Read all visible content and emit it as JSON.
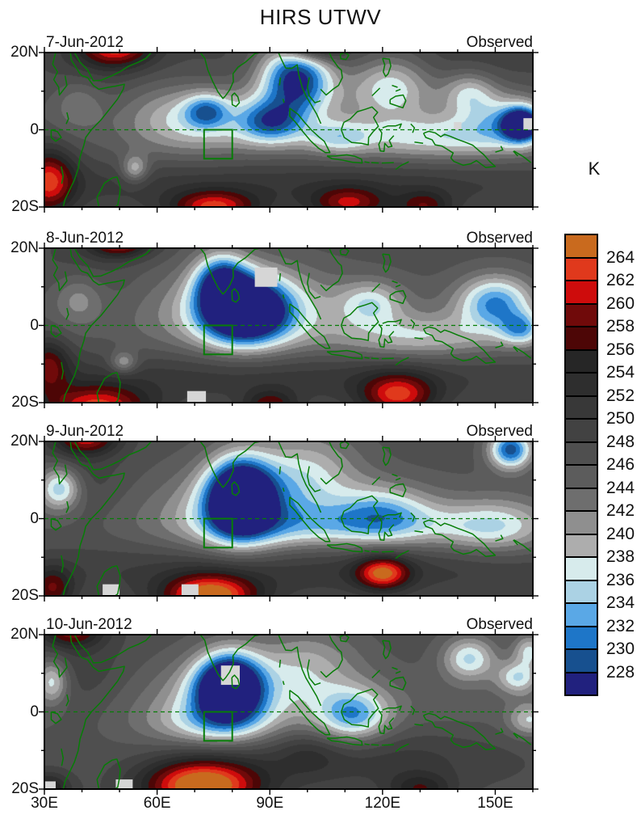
{
  "chart_data": {
    "type": "heatmap",
    "subtype": "filled_contour_map_daily_sequence",
    "title": "HIRS UTWV",
    "unit": "K",
    "lon_range": [
      30,
      160
    ],
    "lat_range": [
      -20,
      20
    ],
    "levels_desc": [
      264,
      262,
      260,
      258,
      256,
      254,
      252,
      250,
      248,
      246,
      244,
      242,
      240,
      238,
      236,
      234,
      232,
      230,
      228
    ],
    "colors_cold_to_warm": [
      "#21217E",
      "#17508F",
      "#1E76C8",
      "#5AA8E6",
      "#ABD2E4",
      "#D7EBEC",
      "#ADADAD",
      "#8F8F8F",
      "#6E6E6E",
      "#5C5C5C",
      "#4F4F4F",
      "#424242",
      "#383838",
      "#2E2E2E",
      "#262626",
      "#4D0606",
      "#700A0A",
      "#CE0C0C",
      "#E0391C",
      "#C96A1E"
    ],
    "missing_data_color": "#D6D6D6",
    "coast_color": "#077D07",
    "study_box": {
      "lon": [
        72.5,
        80
      ],
      "lat": [
        -7.5,
        0
      ]
    },
    "equator_line": {
      "lat": 0,
      "style": "dashed"
    },
    "panels": [
      {
        "date": "7-Jun-2012",
        "source_label": "Observed",
        "base_K": 247,
        "features": [
          [
            95,
            0,
            60,
            8,
            -3
          ],
          [
            95,
            -14,
            60,
            5,
            5
          ],
          [
            120,
            18,
            40,
            6,
            3
          ],
          [
            40,
            10,
            8,
            10,
            3
          ],
          [
            97,
            14,
            7,
            7,
            -22
          ],
          [
            90,
            2,
            6,
            4,
            -12
          ],
          [
            73,
            5,
            4,
            3,
            -9
          ],
          [
            70,
            3,
            12,
            6,
            -8
          ],
          [
            122,
            12,
            8,
            6,
            -11
          ],
          [
            157,
            1.5,
            3.5,
            3,
            -21
          ],
          [
            152,
            3,
            8,
            5,
            -8
          ],
          [
            135,
            -2,
            18,
            4,
            -8
          ],
          [
            108,
            -2,
            6,
            3,
            -7
          ],
          [
            54,
            -10,
            2.5,
            2.5,
            -9
          ],
          [
            39,
            7,
            5,
            5,
            -6
          ],
          [
            143,
            10,
            5,
            4,
            -8
          ],
          [
            49,
            22,
            7,
            4,
            16
          ],
          [
            101,
            22,
            6,
            3,
            13
          ],
          [
            31,
            -13,
            5,
            6,
            14
          ],
          [
            75,
            -20,
            8,
            3,
            14
          ],
          [
            111,
            -19,
            7,
            3,
            11
          ],
          [
            131,
            -20,
            5,
            3,
            9
          ]
        ],
        "missing_data_boxes": [
          [
            157.5,
            160,
            0,
            3
          ],
          [
            139,
            141,
            0,
            2
          ]
        ]
      },
      {
        "date": "8-Jun-2012",
        "source_label": "Observed",
        "base_K": 247,
        "features": [
          [
            95,
            0,
            60,
            8,
            -3
          ],
          [
            90,
            -13,
            60,
            5,
            5
          ],
          [
            40,
            10,
            8,
            10,
            3
          ],
          [
            83,
            4,
            8,
            6,
            -24
          ],
          [
            77,
            12,
            5,
            5,
            -14
          ],
          [
            85,
            5,
            16,
            8,
            -8
          ],
          [
            150,
            6,
            7,
            5,
            -14
          ],
          [
            157,
            -1,
            4,
            3,
            -10
          ],
          [
            117,
            6,
            6,
            4,
            -8
          ],
          [
            130,
            -3,
            15,
            4,
            -7
          ],
          [
            39,
            7,
            5,
            5,
            -7
          ],
          [
            51,
            -9.5,
            2.5,
            2,
            -8
          ],
          [
            50,
            22,
            6,
            3,
            15
          ],
          [
            44,
            -21,
            10,
            4,
            15
          ],
          [
            124,
            -18,
            7,
            4,
            14
          ],
          [
            90,
            -21,
            5,
            3,
            10
          ],
          [
            31,
            -10,
            4,
            5,
            10
          ]
        ],
        "missing_data_boxes": [
          [
            86,
            92,
            10,
            15
          ],
          [
            68,
            73,
            -20,
            -17
          ]
        ]
      },
      {
        "date": "9-Jun-2012",
        "source_label": "Observed",
        "base_K": 247,
        "features": [
          [
            95,
            0,
            60,
            8,
            -3
          ],
          [
            100,
            -13,
            55,
            5,
            5
          ],
          [
            40,
            10,
            8,
            10,
            3
          ],
          [
            82,
            6,
            6,
            7,
            -24
          ],
          [
            82,
            3,
            12,
            8,
            -9
          ],
          [
            34,
            8,
            4,
            4,
            -13
          ],
          [
            154,
            18,
            4,
            3.5,
            -18
          ],
          [
            120,
            2,
            9,
            5,
            -9
          ],
          [
            110,
            -2,
            25,
            4,
            -7
          ],
          [
            150,
            -2,
            10,
            5,
            -8
          ],
          [
            100,
            12,
            10,
            8,
            -8
          ],
          [
            41,
            21,
            6,
            3,
            13
          ],
          [
            74,
            -20,
            9,
            4,
            19
          ],
          [
            120,
            -14,
            5,
            3,
            15
          ],
          [
            32,
            -18,
            4,
            4,
            10
          ]
        ],
        "missing_data_boxes": [
          [
            45.5,
            50,
            -20,
            -17
          ],
          [
            66.5,
            71,
            -20,
            -17
          ]
        ]
      },
      {
        "date": "10-Jun-2012",
        "source_label": "Observed",
        "base_K": 247,
        "features": [
          [
            95,
            0,
            60,
            8,
            -3
          ],
          [
            115,
            -11,
            28,
            6,
            5
          ],
          [
            40,
            10,
            8,
            10,
            3
          ],
          [
            79,
            7,
            6,
            6,
            -23
          ],
          [
            78,
            4,
            11,
            7,
            -9
          ],
          [
            112,
            -1,
            7,
            5,
            -13
          ],
          [
            100,
            12,
            10,
            7,
            -7
          ],
          [
            143,
            14,
            5,
            4,
            -11
          ],
          [
            156,
            9,
            4,
            3,
            -10
          ],
          [
            159,
            16,
            3,
            3,
            -9
          ],
          [
            159,
            -2,
            4,
            3,
            -8
          ],
          [
            32,
            8,
            3,
            4,
            -10
          ],
          [
            75,
            -3,
            12,
            4,
            -6
          ],
          [
            72,
            -19,
            11,
            5,
            21
          ],
          [
            37,
            21,
            6,
            3,
            11
          ],
          [
            31,
            -20,
            4,
            3,
            10
          ],
          [
            130,
            -20,
            6,
            3,
            8
          ],
          [
            100,
            -11,
            6,
            4,
            3
          ]
        ],
        "missing_data_boxes": [
          [
            77,
            82,
            7,
            12
          ],
          [
            49,
            53.5,
            -20,
            -17.5
          ],
          [
            30,
            33,
            -20,
            -18
          ]
        ]
      }
    ]
  },
  "axes": {
    "lon_tick_labels": [
      "30E",
      "60E",
      "90E",
      "120E",
      "150E"
    ],
    "lon_tick_values": [
      30,
      60,
      90,
      120,
      150
    ],
    "lat_tick_labels": [
      "20N",
      "0",
      "20S"
    ],
    "lat_tick_values": [
      20,
      0,
      -20
    ],
    "minor_tick_step_deg": 10
  }
}
